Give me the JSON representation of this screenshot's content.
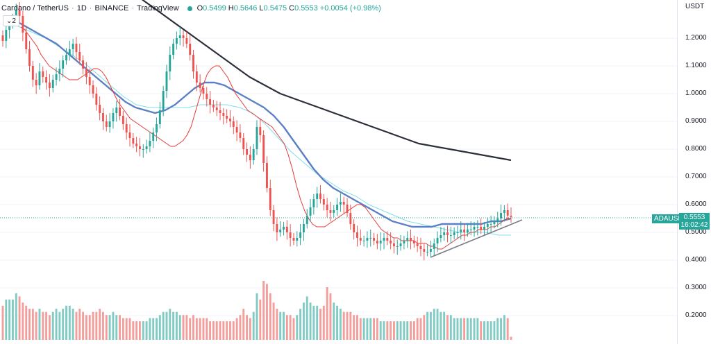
{
  "legend": {
    "symbol": "Cardano / TetherUS",
    "interval": "1D",
    "exchange": "BINANCE",
    "source": "TradingView",
    "open_label": "O",
    "open": "0.5499",
    "high_label": "H",
    "high": "0.5646",
    "low_label": "L",
    "low": "0.5475",
    "close_label": "C",
    "close": "0.5553",
    "change": "+0.0054 (+0.98%)"
  },
  "indicator_count": "2",
  "currency": "USDT",
  "price_tag": {
    "symbol": "ADAUSDT",
    "price": "0.5553",
    "countdown": "16:02:42"
  },
  "colors": {
    "up": "#26a69a",
    "down": "#ef5350",
    "up_volume": "#80cbc4",
    "down_volume": "#f49e9c",
    "ema_short": "#e53935",
    "ma_blue": "#5b7fc4",
    "ma_cyan": "#80deea",
    "ma_long": "#2b2f3a",
    "trendline": "#787b86"
  },
  "chart_data": {
    "type": "candlestick",
    "y_axis": {
      "ticks": [
        "1.2000",
        "1.1000",
        "1.0000",
        "0.9000",
        "0.8000",
        "0.7000",
        "0.6000",
        "0.5000",
        "0.4000",
        "0.3000",
        "0.2000"
      ],
      "tick_values": [
        1.2,
        1.1,
        1.0,
        0.9,
        0.8,
        0.7,
        0.6,
        0.5,
        0.4,
        0.3,
        0.2
      ],
      "range": [
        0.11,
        1.34
      ]
    },
    "closes": [
      1.19,
      1.23,
      1.25,
      1.27,
      1.3,
      1.28,
      1.22,
      1.16,
      1.1,
      1.05,
      1.03,
      1.08,
      1.06,
      1.04,
      1.02,
      1.05,
      1.07,
      1.09,
      1.12,
      1.14,
      1.16,
      1.18,
      1.15,
      1.12,
      1.09,
      1.06,
      1.03,
      1.0,
      0.96,
      0.93,
      0.9,
      0.88,
      0.9,
      0.93,
      0.95,
      0.92,
      0.89,
      0.86,
      0.84,
      0.82,
      0.81,
      0.8,
      0.8,
      0.81,
      0.83,
      0.86,
      0.89,
      0.94,
      1.01,
      1.08,
      1.14,
      1.18,
      1.2,
      1.21,
      1.2,
      1.18,
      1.14,
      1.08,
      1.04,
      1.02,
      1.0,
      0.98,
      0.96,
      0.95,
      0.94,
      0.93,
      0.92,
      0.91,
      0.9,
      0.88,
      0.86,
      0.84,
      0.8,
      0.78,
      0.76,
      0.8,
      0.88,
      0.85,
      0.75,
      0.66,
      0.58,
      0.53,
      0.5,
      0.51,
      0.52,
      0.5,
      0.48,
      0.47,
      0.48,
      0.5,
      0.53,
      0.56,
      0.59,
      0.62,
      0.64,
      0.62,
      0.6,
      0.58,
      0.57,
      0.58,
      0.6,
      0.61,
      0.6,
      0.57,
      0.53,
      0.5,
      0.48,
      0.47,
      0.47,
      0.48,
      0.48,
      0.47,
      0.46,
      0.47,
      0.48,
      0.47,
      0.46,
      0.45,
      0.45,
      0.46,
      0.47,
      0.48,
      0.47,
      0.46,
      0.45,
      0.44,
      0.43,
      0.43,
      0.44,
      0.46,
      0.48,
      0.49,
      0.5,
      0.49,
      0.49,
      0.5,
      0.5,
      0.51,
      0.5,
      0.51,
      0.51,
      0.52,
      0.52,
      0.51,
      0.52,
      0.53,
      0.53,
      0.54,
      0.55,
      0.57,
      0.58,
      0.56,
      0.5553
    ],
    "volumes": [
      22,
      26,
      26,
      26,
      30,
      28,
      24,
      22,
      20,
      20,
      18,
      20,
      18,
      18,
      16,
      18,
      20,
      18,
      20,
      22,
      22,
      20,
      18,
      20,
      18,
      16,
      16,
      18,
      18,
      20,
      18,
      16,
      16,
      18,
      16,
      16,
      14,
      14,
      14,
      12,
      12,
      12,
      12,
      12,
      14,
      14,
      14,
      16,
      18,
      18,
      20,
      18,
      18,
      16,
      16,
      16,
      14,
      16,
      14,
      14,
      14,
      14,
      12,
      12,
      12,
      12,
      12,
      12,
      12,
      12,
      14,
      16,
      20,
      16,
      14,
      18,
      30,
      26,
      38,
      36,
      30,
      24,
      20,
      18,
      18,
      16,
      16,
      14,
      16,
      20,
      24,
      28,
      24,
      22,
      22,
      20,
      22,
      34,
      30,
      24,
      22,
      20,
      18,
      18,
      18,
      16,
      16,
      14,
      14,
      14,
      14,
      14,
      14,
      12,
      12,
      12,
      12,
      12,
      12,
      12,
      12,
      12,
      12,
      12,
      14,
      14,
      16,
      18,
      18,
      20,
      20,
      18,
      18,
      16,
      16,
      14,
      14,
      14,
      14,
      14,
      14,
      14,
      14,
      12,
      12,
      12,
      12,
      12,
      14,
      14,
      16,
      14,
      2
    ],
    "ema_short": [
      1.24,
      1.23,
      1.21,
      1.19,
      1.17,
      1.14,
      1.12,
      1.1,
      1.09,
      1.08,
      1.07,
      1.06,
      1.05,
      1.05,
      1.05,
      1.06,
      1.07,
      1.08,
      1.09,
      1.09,
      1.08,
      1.06,
      1.03,
      1.0,
      0.97,
      0.95,
      0.93,
      0.91,
      0.9,
      0.89,
      0.88,
      0.87,
      0.86,
      0.85,
      0.84,
      0.83,
      0.82,
      0.81,
      0.81,
      0.82,
      0.83,
      0.85,
      0.88,
      0.93,
      0.98,
      1.03,
      1.07,
      1.09,
      1.1,
      1.1,
      1.08,
      1.06,
      1.03,
      1.0,
      0.98,
      0.96,
      0.94,
      0.93,
      0.92,
      0.91,
      0.9,
      0.89,
      0.88,
      0.86,
      0.84,
      0.82,
      0.78,
      0.73,
      0.67,
      0.62,
      0.58,
      0.55,
      0.53,
      0.52,
      0.52,
      0.52,
      0.53,
      0.54,
      0.55,
      0.56,
      0.57,
      0.58,
      0.59,
      0.6,
      0.6,
      0.59,
      0.57,
      0.55,
      0.53,
      0.51,
      0.5,
      0.49,
      0.48,
      0.48,
      0.47,
      0.47,
      0.47,
      0.47,
      0.46,
      0.46,
      0.46,
      0.45,
      0.45,
      0.44,
      0.44,
      0.45,
      0.46,
      0.47,
      0.48,
      0.49,
      0.49,
      0.5,
      0.5,
      0.51,
      0.51,
      0.51,
      0.52,
      0.52,
      0.53,
      0.54,
      0.55,
      0.55
    ],
    "ma_blue": [
      1.28,
      1.26,
      1.24,
      1.22,
      1.2,
      1.18,
      1.15,
      1.12,
      1.09,
      1.06,
      1.03,
      1.0,
      0.97,
      0.95,
      0.94,
      0.93,
      0.94,
      0.96,
      0.99,
      1.02,
      1.04,
      1.04,
      1.03,
      1.01,
      0.99,
      0.97,
      0.95,
      0.92,
      0.88,
      0.83,
      0.78,
      0.73,
      0.69,
      0.66,
      0.64,
      0.62,
      0.6,
      0.58,
      0.56,
      0.54,
      0.53,
      0.52,
      0.52,
      0.52,
      0.53,
      0.53,
      0.53,
      0.53,
      0.53,
      0.54,
      0.54,
      0.55
    ],
    "ma_cyan": [
      1.26,
      1.24,
      1.22,
      1.2,
      1.17,
      1.14,
      1.11,
      1.07,
      1.03,
      0.99,
      0.96,
      0.95,
      0.95,
      0.95,
      0.95,
      0.96,
      0.96,
      0.96,
      0.95,
      0.93,
      0.89,
      0.84,
      0.79,
      0.75,
      0.71,
      0.68,
      0.65,
      0.63,
      0.6,
      0.58,
      0.56,
      0.54,
      0.53,
      0.52,
      0.51,
      0.5,
      0.5,
      0.5,
      0.49,
      0.49
    ],
    "ma_long": [
      1.4,
      1.37,
      1.34,
      1.3,
      1.26,
      1.22,
      1.18,
      1.14,
      1.1,
      1.06,
      1.03,
      1.0,
      0.98,
      0.96,
      0.94,
      0.92,
      0.9,
      0.88,
      0.86,
      0.84,
      0.82,
      0.81,
      0.8,
      0.79,
      0.78,
      0.77,
      0.76
    ],
    "trendline": [
      [
        0.41,
        0.545
      ]
    ]
  }
}
